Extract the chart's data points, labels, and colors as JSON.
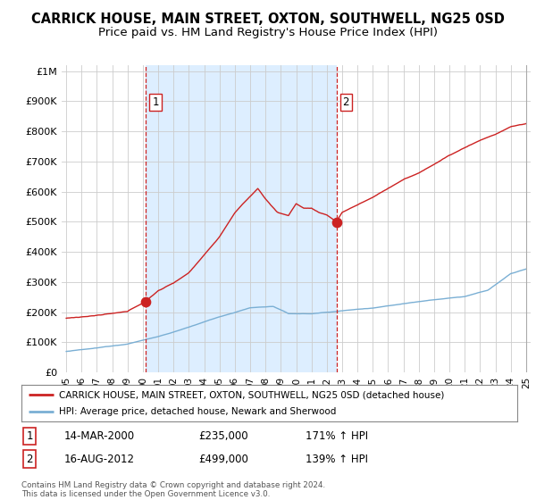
{
  "title": "CARRICK HOUSE, MAIN STREET, OXTON, SOUTHWELL, NG25 0SD",
  "subtitle": "Price paid vs. HM Land Registry's House Price Index (HPI)",
  "ylabel_ticks": [
    "£0",
    "£100K",
    "£200K",
    "£300K",
    "£400K",
    "£500K",
    "£600K",
    "£700K",
    "£800K",
    "£900K",
    "£1M"
  ],
  "ytick_vals": [
    0,
    100000,
    200000,
    300000,
    400000,
    500000,
    600000,
    700000,
    800000,
    900000,
    1000000
  ],
  "ylim": [
    0,
    1020000
  ],
  "xlim_start": 1994.7,
  "xlim_end": 2025.3,
  "title_fontsize": 10.5,
  "subtitle_fontsize": 9.5,
  "marker1_x": 2000.2,
  "marker1_y": 235000,
  "marker2_x": 2012.63,
  "marker2_y": 499000,
  "vline1_x": 2000.2,
  "vline2_x": 2012.63,
  "label1": "1",
  "label2": "2",
  "date1": "14-MAR-2000",
  "price1": "£235,000",
  "hpi1": "171% ↑ HPI",
  "date2": "16-AUG-2012",
  "price2": "£499,000",
  "hpi2": "139% ↑ HPI",
  "legend_line1": "CARRICK HOUSE, MAIN STREET, OXTON, SOUTHWELL, NG25 0SD (detached house)",
  "legend_line2": "HPI: Average price, detached house, Newark and Sherwood",
  "footer1": "Contains HM Land Registry data © Crown copyright and database right 2024.",
  "footer2": "This data is licensed under the Open Government Licence v3.0.",
  "red_color": "#cc2222",
  "blue_color": "#7aafd4",
  "shade_color": "#ddeeff",
  "background_color": "#ffffff",
  "grid_color": "#cccccc"
}
